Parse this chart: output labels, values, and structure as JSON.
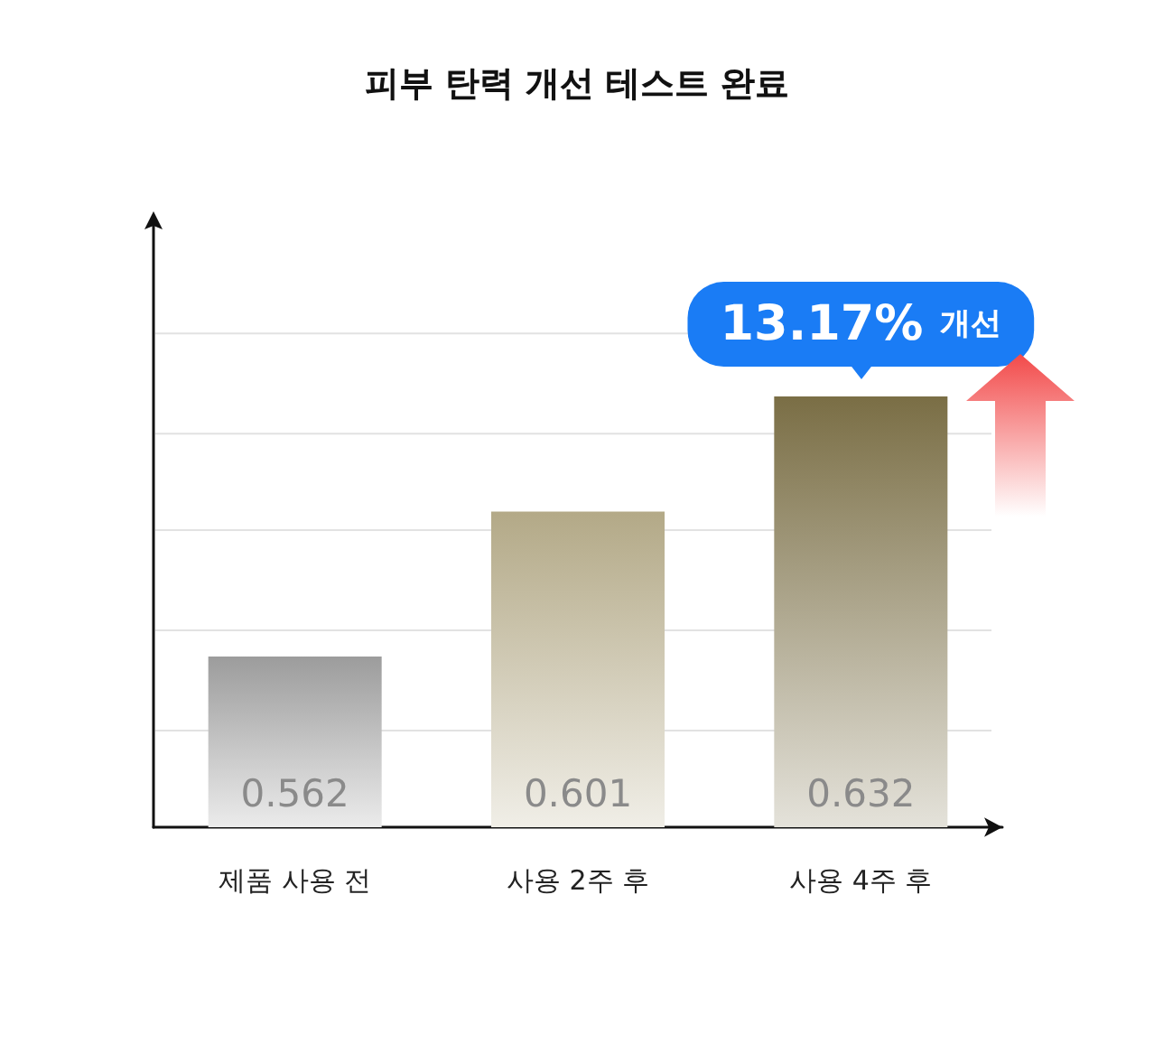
{
  "chart_data": {
    "type": "bar",
    "title": "피부 탄력 개선 테스트 완료",
    "categories": [
      "제품 사용 전",
      "사용 2주 후",
      "사용 4주 후"
    ],
    "values": [
      0.562,
      0.601,
      0.632
    ],
    "colors": [
      "#9c9c9c",
      "#b3a987",
      "#7a6e45"
    ],
    "ylim": [
      0.516,
      0.678
    ],
    "yticks": [
      {
        "value": 0.542,
        "label": null
      },
      {
        "value": 0.569,
        "label": null
      },
      {
        "value": 0.596,
        "label": null
      },
      {
        "value": 0.622,
        "label": null
      },
      {
        "value": 0.649,
        "label": null
      }
    ],
    "grid": "y",
    "data_labels": true,
    "annotations": [
      {
        "text": "13.17% 개선",
        "x": "사용 4주 후",
        "y": 0.632
      }
    ]
  }
}
